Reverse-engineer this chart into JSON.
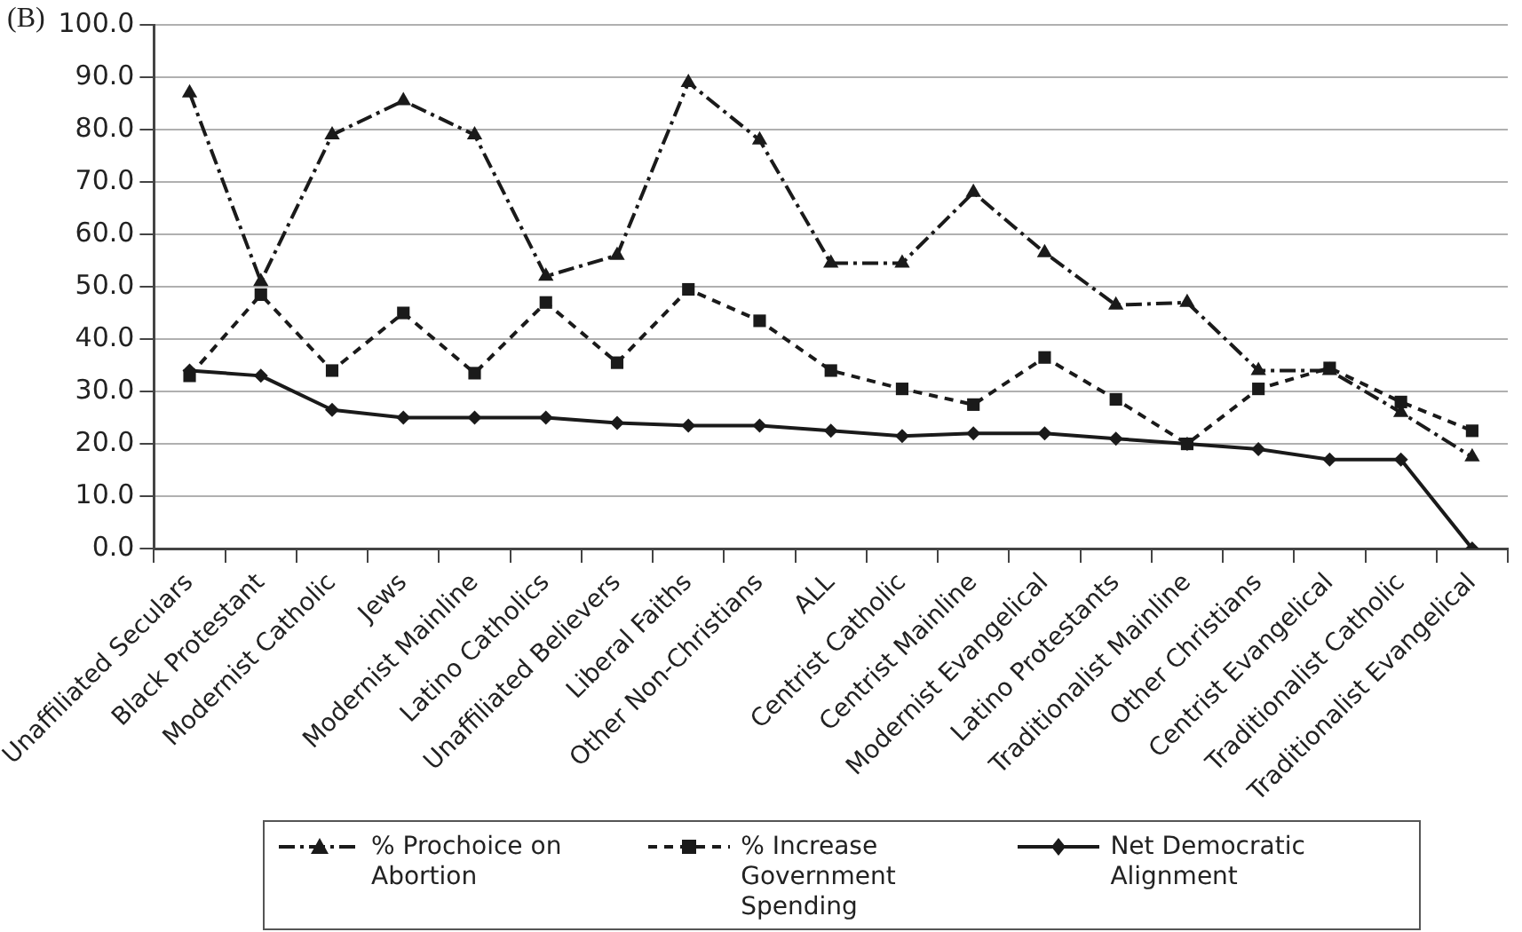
{
  "chart_data": {
    "type": "line",
    "annotations": [
      "(B)"
    ],
    "categories": [
      "Unaffiliated Seculars",
      "Black Protestant",
      "Modernist Catholic",
      "Jews",
      "Modernist Mainline",
      "Latino Catholics",
      "Unaffiliated Believers",
      "Liberal Faiths",
      "Other Non-Christians",
      "ALL",
      "Centrist Catholic",
      "Centrist Mainline",
      "Modernist Evangelical",
      "Latino Protestants",
      "Traditionalist Mainline",
      "Other Christians",
      "Centrist Evangelical",
      "Traditionalist Catholic",
      "Traditionalist Evangelical"
    ],
    "series": [
      {
        "name": "% Prochoice on Abortion",
        "color": "#1a1a1a",
        "marker": "triangle",
        "line_style": "dashdot",
        "values": [
          87,
          51,
          79,
          85.5,
          79,
          52,
          56,
          89,
          78,
          54.5,
          54.5,
          68,
          56.5,
          46.5,
          47,
          34,
          34,
          26,
          17.5
        ]
      },
      {
        "name": "% Increase Government Spending",
        "color": "#1a1a1a",
        "marker": "square",
        "line_style": "dashed",
        "values": [
          33,
          48.5,
          34,
          45,
          33.5,
          47,
          35.5,
          49.5,
          43.5,
          34,
          30.5,
          27.5,
          36.5,
          28.5,
          20,
          30.5,
          34.5,
          28,
          22.5
        ]
      },
      {
        "name": "Net Democratic Alignment",
        "color": "#1a1a1a",
        "marker": "diamond",
        "line_style": "solid",
        "values": [
          34,
          33,
          26.5,
          25,
          25,
          25,
          24,
          23.5,
          23.5,
          22.5,
          21.5,
          22,
          22,
          21,
          20,
          19,
          17,
          17,
          0
        ]
      }
    ],
    "ylim": [
      0,
      100
    ],
    "yticks": [
      {
        "value": 0,
        "label": "0.0"
      },
      {
        "value": 10,
        "label": "10.0"
      },
      {
        "value": 20,
        "label": "20.0"
      },
      {
        "value": 30,
        "label": "30.0"
      },
      {
        "value": 40,
        "label": "40.0"
      },
      {
        "value": 50,
        "label": "50.0"
      },
      {
        "value": 60,
        "label": "60.0"
      },
      {
        "value": 70,
        "label": "70.0"
      },
      {
        "value": 80,
        "label": "80.0"
      },
      {
        "value": 90,
        "label": "90.0"
      },
      {
        "value": 100,
        "label": "100.0"
      }
    ],
    "grid": "y",
    "legend": "bottom"
  }
}
